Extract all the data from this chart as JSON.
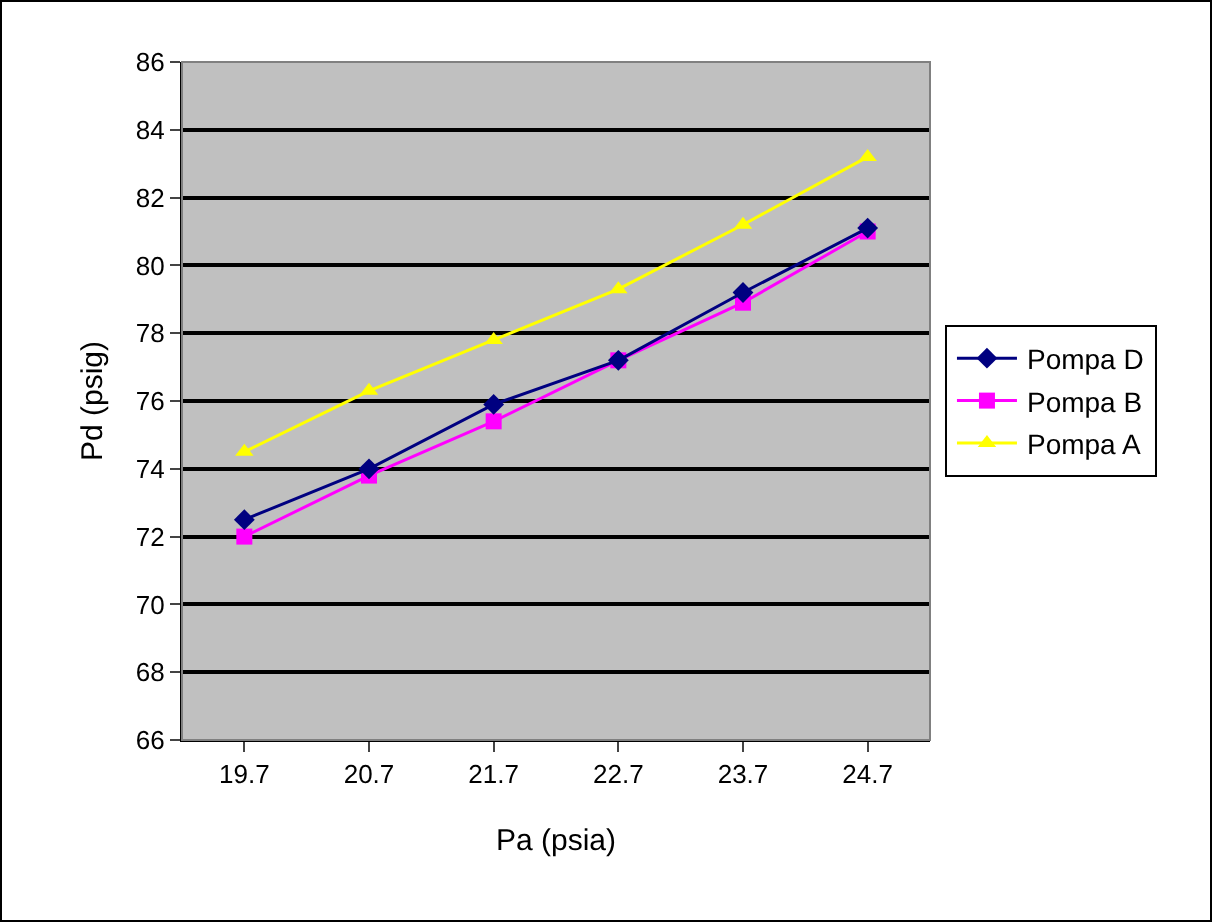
{
  "chart_data": {
    "type": "line",
    "xlabel": "Pa (psia)",
    "ylabel": "Pd (psig)",
    "categories": [
      "19.7",
      "20.7",
      "21.7",
      "22.7",
      "23.7",
      "24.7"
    ],
    "series": [
      {
        "name": "Pompa D",
        "color": "#000080",
        "marker": "diamond",
        "values": [
          72.5,
          74.0,
          75.9,
          77.2,
          79.2,
          81.1
        ]
      },
      {
        "name": "Pompa B",
        "color": "#ff00ff",
        "marker": "square",
        "values": [
          72.0,
          73.8,
          75.4,
          77.2,
          78.9,
          81.0
        ]
      },
      {
        "name": "Pompa A",
        "color": "#ffff00",
        "marker": "triangle",
        "values": [
          74.5,
          76.3,
          77.8,
          79.3,
          81.2,
          83.2
        ]
      }
    ],
    "ylim": [
      66,
      86
    ],
    "yticks": [
      66,
      68,
      70,
      72,
      74,
      76,
      78,
      80,
      82,
      84,
      86
    ],
    "grid": "y",
    "legend": "right"
  }
}
